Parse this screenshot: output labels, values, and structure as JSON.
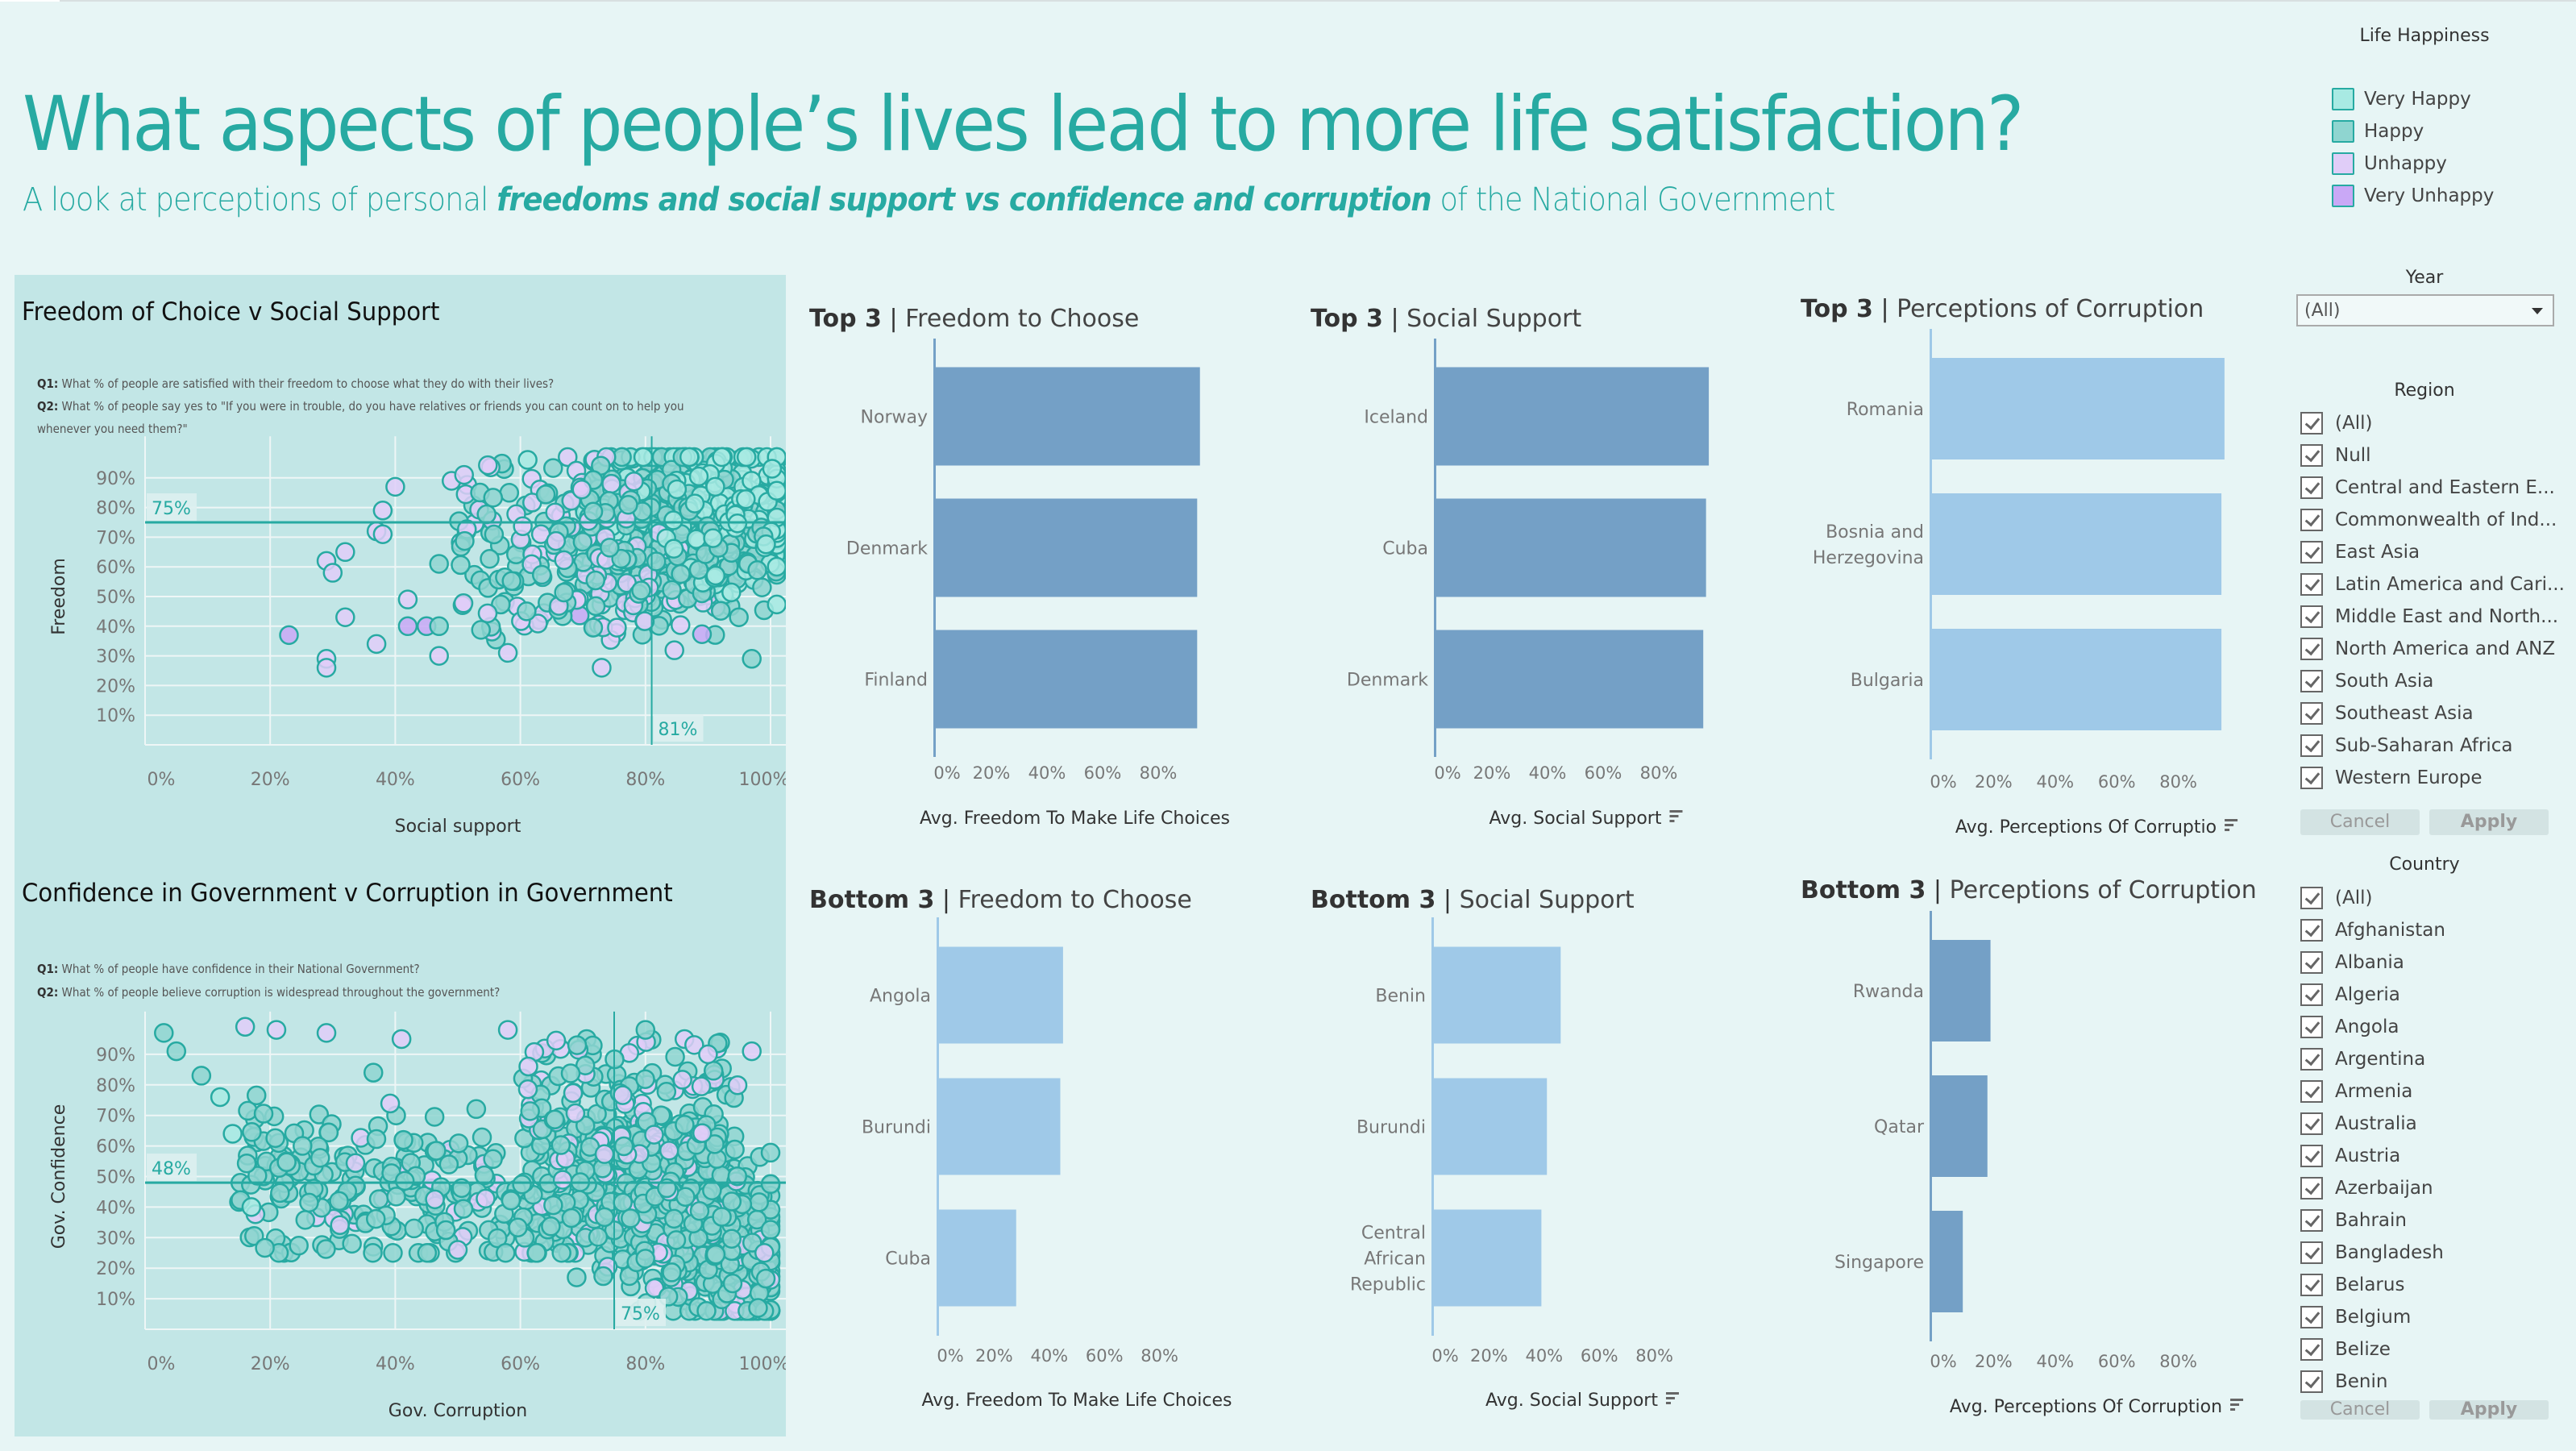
{
  "header": {
    "title": "What aspects of people’s lives lead to more life satisfaction?",
    "subtitle_pre": "A look at perceptions of personal ",
    "subtitle_emph": "freedoms and social support vs confidence and corruption",
    "subtitle_post": " of the National Government"
  },
  "colors": {
    "accent": "#27aaa2",
    "panel_bg": "#c2e6e6",
    "page_bg": "#e7f5f5",
    "bar_dark": "#74a0c6",
    "bar_light": "#9fc9e8",
    "very_happy": "#a8eae3",
    "happy": "#8fd5d0",
    "unhappy": "#e0cdf8",
    "very_unhappy": "#c9a8f6"
  },
  "legend": {
    "title": "Life Happiness",
    "items": [
      {
        "label": "Very Happy",
        "color": "#a8eae3"
      },
      {
        "label": "Happy",
        "color": "#8fd5d0"
      },
      {
        "label": "Unhappy",
        "color": "#e0cdf8"
      },
      {
        "label": "Very Unhappy",
        "color": "#c9a8f6"
      }
    ]
  },
  "filters": {
    "year": {
      "title": "Year",
      "value": "(All)"
    },
    "region": {
      "title": "Region",
      "items": [
        "(All)",
        "Null",
        "Central and Eastern E...",
        "Commonwealth of Ind...",
        "East Asia",
        "Latin America and Cari...",
        "Middle East and North...",
        "North America and ANZ",
        "South Asia",
        "Southeast Asia",
        "Sub-Saharan Africa",
        "Western Europe"
      ],
      "cancel": "Cancel",
      "apply": "Apply"
    },
    "country": {
      "title": "Country",
      "items": [
        "(All)",
        "Afghanistan",
        "Albania",
        "Algeria",
        "Angola",
        "Argentina",
        "Armenia",
        "Australia",
        "Austria",
        "Azerbaijan",
        "Bahrain",
        "Bangladesh",
        "Belarus",
        "Belgium",
        "Belize",
        "Benin"
      ],
      "cancel": "Cancel",
      "apply": "Apply"
    }
  },
  "scatter1": {
    "title": "Freedom of Choice v Social Support",
    "q1_label": "Q1:",
    "q1": " What % of people are satisfied with their freedom to choose what they do with their lives?",
    "q2_label": "Q2:",
    "q2a": " What % of people say yes to \"If you were in trouble, do you have relatives or friends you can count on to help you",
    "q2b": "whenever you need them?\""
  },
  "scatter2": {
    "title": "Confidence in Government v Corruption in Government",
    "q1_label": "Q1:",
    "q1": " What % of people have confidence in their National Government?",
    "q2_label": "Q2:",
    "q2": " What % of people believe corruption is widespread throughout the government?"
  },
  "bar_titles": {
    "top_freedom": {
      "bold": "Top 3",
      "rest": "Freedom to Choose"
    },
    "top_social": {
      "bold": "Top 3",
      "rest": "Social Support"
    },
    "top_corruption": {
      "bold": "Top 3",
      "rest": "Perceptions of Corruption"
    },
    "bottom_freedom": {
      "bold": "Bottom 3",
      "rest": "Freedom to Choose"
    },
    "bottom_social": {
      "bold": "Bottom 3",
      "rest": "Social Support"
    },
    "bottom_corruption": {
      "bold": "Bottom 3",
      "rest": "Perceptions of Corruption"
    }
  },
  "chart_data": [
    {
      "id": "scatter1",
      "type": "scatter",
      "title": "Freedom of Choice v Social Support",
      "xlabel": "Social support",
      "ylabel": "Freedom",
      "xlim": [
        0,
        1
      ],
      "ylim": [
        0,
        1
      ],
      "x_ticks": [
        "0%",
        "20%",
        "40%",
        "60%",
        "80%",
        "100%"
      ],
      "y_ticks": [
        "10%",
        "20%",
        "30%",
        "40%",
        "50%",
        "60%",
        "70%",
        "80%",
        "90%"
      ],
      "reference_lines": [
        {
          "axis": "y",
          "value": 0.75,
          "label": "75%"
        },
        {
          "axis": "x",
          "value": 0.81,
          "label": "81%"
        }
      ],
      "grid": true,
      "color_by": "Life Happiness",
      "note": "Dense cloud of ~1900 country-year points; concentrated at social support 70–100%, freedom 40–97%",
      "sample_points": [
        {
          "x": 0.23,
          "y": 0.37,
          "c": "Very Unhappy"
        },
        {
          "x": 0.29,
          "y": 0.29,
          "c": "Unhappy"
        },
        {
          "x": 0.29,
          "y": 0.26,
          "c": "Unhappy"
        },
        {
          "x": 0.29,
          "y": 0.62,
          "c": "Unhappy"
        },
        {
          "x": 0.3,
          "y": 0.58,
          "c": "Unhappy"
        },
        {
          "x": 0.32,
          "y": 0.65,
          "c": "Unhappy"
        },
        {
          "x": 0.32,
          "y": 0.43,
          "c": "Unhappy"
        },
        {
          "x": 0.37,
          "y": 0.34,
          "c": "Unhappy"
        },
        {
          "x": 0.37,
          "y": 0.72,
          "c": "Unhappy"
        },
        {
          "x": 0.38,
          "y": 0.71,
          "c": "Unhappy"
        },
        {
          "x": 0.38,
          "y": 0.79,
          "c": "Unhappy"
        },
        {
          "x": 0.4,
          "y": 0.87,
          "c": "Unhappy"
        },
        {
          "x": 0.42,
          "y": 0.4,
          "c": "Very Unhappy"
        },
        {
          "x": 0.42,
          "y": 0.49,
          "c": "Unhappy"
        },
        {
          "x": 0.45,
          "y": 0.4,
          "c": "Very Unhappy"
        },
        {
          "x": 0.47,
          "y": 0.4,
          "c": "Happy"
        },
        {
          "x": 0.47,
          "y": 0.3,
          "c": "Unhappy"
        },
        {
          "x": 0.47,
          "y": 0.61,
          "c": "Happy"
        },
        {
          "x": 0.49,
          "y": 0.89,
          "c": "Unhappy"
        },
        {
          "x": 0.51,
          "y": 0.91,
          "c": "Unhappy"
        },
        {
          "x": 0.58,
          "y": 0.31,
          "c": "Unhappy"
        },
        {
          "x": 0.61,
          "y": 0.45,
          "c": "Happy"
        },
        {
          "x": 0.73,
          "y": 0.26,
          "c": "Unhappy"
        },
        {
          "x": 0.97,
          "y": 0.29,
          "c": "Happy"
        }
      ]
    },
    {
      "id": "scatter2",
      "type": "scatter",
      "title": "Confidence in Government v Corruption in Government",
      "xlabel": "Gov. Corruption",
      "ylabel": "Gov. Confidence",
      "xlim": [
        0,
        1
      ],
      "ylim": [
        0,
        1
      ],
      "x_ticks": [
        "0%",
        "20%",
        "40%",
        "60%",
        "80%",
        "100%"
      ],
      "y_ticks": [
        "10%",
        "20%",
        "30%",
        "40%",
        "50%",
        "60%",
        "70%",
        "80%",
        "90%"
      ],
      "reference_lines": [
        {
          "axis": "y",
          "value": 0.48,
          "label": "48%"
        },
        {
          "axis": "x",
          "value": 0.75,
          "label": "75%"
        }
      ],
      "grid": true,
      "color_by": "Life Happiness",
      "note": "Negative relationship; dense cluster at corruption 70–100%, confidence 10–60%",
      "sample_points": [
        {
          "x": 0.03,
          "y": 0.97,
          "c": "Happy"
        },
        {
          "x": 0.05,
          "y": 0.91,
          "c": "Happy"
        },
        {
          "x": 0.09,
          "y": 0.83,
          "c": "Happy"
        },
        {
          "x": 0.12,
          "y": 0.76,
          "c": "Very Happy"
        },
        {
          "x": 0.14,
          "y": 0.64,
          "c": "Very Happy"
        },
        {
          "x": 0.16,
          "y": 0.99,
          "c": "Unhappy"
        },
        {
          "x": 0.17,
          "y": 0.4,
          "c": "Very Happy"
        },
        {
          "x": 0.21,
          "y": 0.98,
          "c": "Unhappy"
        },
        {
          "x": 0.29,
          "y": 0.97,
          "c": "Unhappy"
        },
        {
          "x": 0.31,
          "y": 0.42,
          "c": "Happy"
        },
        {
          "x": 0.41,
          "y": 0.95,
          "c": "Unhappy"
        },
        {
          "x": 0.43,
          "y": 0.33,
          "c": "Happy"
        },
        {
          "x": 0.5,
          "y": 0.26,
          "c": "Unhappy"
        },
        {
          "x": 0.58,
          "y": 0.98,
          "c": "Unhappy"
        },
        {
          "x": 0.69,
          "y": 0.17,
          "c": "Happy"
        },
        {
          "x": 0.8,
          "y": 0.98,
          "c": "Happy"
        },
        {
          "x": 0.9,
          "y": 0.9,
          "c": "Unhappy"
        },
        {
          "x": 0.97,
          "y": 0.91,
          "c": "Unhappy"
        },
        {
          "x": 0.99,
          "y": 0.25,
          "c": "Unhappy"
        },
        {
          "x": 0.98,
          "y": 0.07,
          "c": "Happy"
        }
      ]
    },
    {
      "id": "top_freedom",
      "type": "bar",
      "title": "Top 3 | Freedom to Choose",
      "categories": [
        "Norway",
        "Denmark",
        "Finland"
      ],
      "values": [
        0.95,
        0.94,
        0.94
      ],
      "xlabel": "Avg. Freedom To Make Life Choices",
      "x_ticks": [
        "0%",
        "20%",
        "40%",
        "60%",
        "80%"
      ],
      "xlim": [
        0,
        1
      ],
      "color": "#74a0c6",
      "sort_icon": false
    },
    {
      "id": "top_social",
      "type": "bar",
      "title": "Top 3 | Social Support",
      "categories": [
        "Iceland",
        "Cuba",
        "Denmark"
      ],
      "values": [
        0.98,
        0.97,
        0.96
      ],
      "xlabel": "Avg. Social Support",
      "x_ticks": [
        "0%",
        "20%",
        "40%",
        "60%",
        "80%"
      ],
      "xlim": [
        0,
        1
      ],
      "color": "#74a0c6",
      "sort_icon": true
    },
    {
      "id": "top_corruption",
      "type": "bar",
      "title": "Top 3 | Perceptions of Corruption",
      "categories": [
        "Romania",
        "Bosnia and Herzegovina",
        "Bulgaria"
      ],
      "values": [
        0.95,
        0.94,
        0.94
      ],
      "xlabel": "Avg. Perceptions Of Corruptio",
      "x_ticks": [
        "0%",
        "20%",
        "40%",
        "60%",
        "80%"
      ],
      "xlim": [
        0,
        1
      ],
      "color": "#9fc9e8",
      "sort_icon": true
    },
    {
      "id": "bottom_freedom",
      "type": "bar",
      "title": "Bottom 3 | Freedom to Choose",
      "categories": [
        "Angola",
        "Burundi",
        "Cuba"
      ],
      "values": [
        0.45,
        0.44,
        0.28
      ],
      "xlabel": "Avg. Freedom To Make Life Choices",
      "x_ticks": [
        "0%",
        "20%",
        "40%",
        "60%",
        "80%"
      ],
      "xlim": [
        0,
        1
      ],
      "color": "#9fc9e8",
      "sort_icon": false
    },
    {
      "id": "bottom_social",
      "type": "bar",
      "title": "Bottom 3 | Social Support",
      "categories": [
        "Benin",
        "Burundi",
        "Central African Republic"
      ],
      "values": [
        0.46,
        0.41,
        0.39
      ],
      "xlabel": "Avg. Social Support",
      "x_ticks": [
        "0%",
        "20%",
        "40%",
        "60%",
        "80%"
      ],
      "xlim": [
        0,
        1
      ],
      "color": "#9fc9e8",
      "sort_icon": true
    },
    {
      "id": "bottom_corruption",
      "type": "bar",
      "title": "Bottom 3 | Perceptions of Corruption",
      "categories": [
        "Rwanda",
        "Qatar",
        "Singapore"
      ],
      "values": [
        0.19,
        0.18,
        0.1
      ],
      "xlabel": "Avg. Perceptions Of Corruption",
      "x_ticks": [
        "0%",
        "20%",
        "40%",
        "60%",
        "80%"
      ],
      "xlim": [
        0,
        1
      ],
      "color": "#74a0c6",
      "sort_icon": true
    }
  ]
}
